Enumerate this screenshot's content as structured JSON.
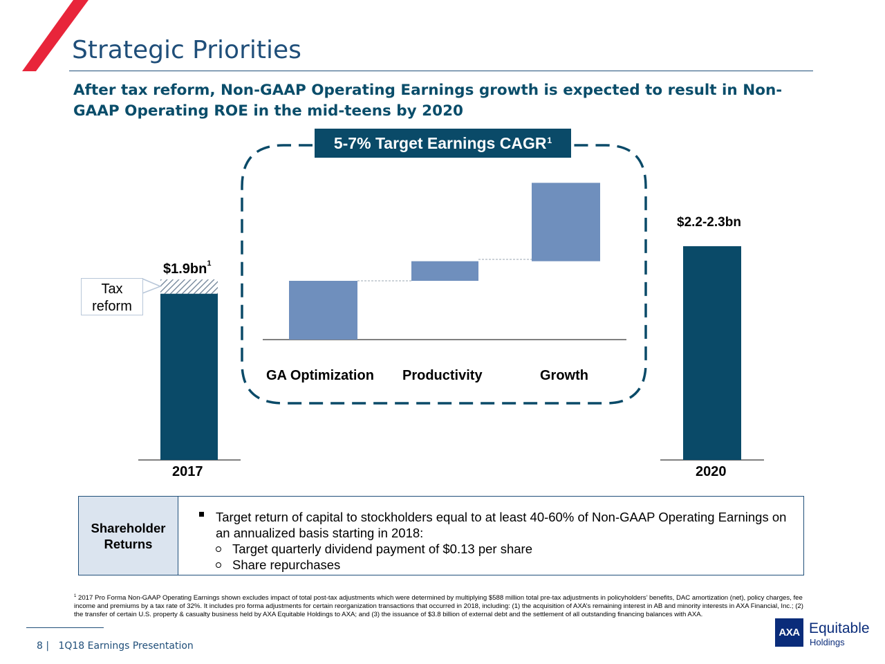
{
  "slide": {
    "title": "Strategic Priorities",
    "subtitle": "After tax reform, Non-GAAP Operating Earnings growth is expected to result in Non-GAAP Operating ROE in the mid-teens by 2020"
  },
  "colors": {
    "title_blue": "#1f4e79",
    "dark_bar": "#0a4a68",
    "light_bar": "#6f8fbd",
    "accent_red": "#e8253a",
    "table_fill": "#dbe4ef"
  },
  "cagr_callout": {
    "text": "5-7% Target Earnings CAGR",
    "footnote_mark": "1"
  },
  "tax_reform_box": {
    "line1": "Tax",
    "line2": "reform"
  },
  "chart_data": {
    "type": "bar",
    "subtype": "waterfall",
    "categories": [
      "2017",
      "GA Optimization",
      "Productivity",
      "Growth",
      "2020"
    ],
    "bar_labels": {
      "2017": {
        "text": "$1.9bn",
        "footnote_mark": "1"
      },
      "2020": {
        "text": "$2.2-2.3bn"
      }
    },
    "values": {
      "2017_total": 1.9,
      "2017_tax_reform_portion": 0.15,
      "ga_optimization": 0.09,
      "productivity": 0.03,
      "growth": 0.12,
      "2020": 2.25
    },
    "axis_labels_shown": false,
    "grid": false,
    "legend": "none"
  },
  "shareholder_returns": {
    "label_line1": "Shareholder",
    "label_line2": "Returns",
    "bullet_line1": "Target return of capital to stockholders equal to at least 40-60% of Non-GAAP Operating Earnings on",
    "bullet_line2": "an annualized basis starting in 2018:",
    "sub_items": [
      "Target quarterly dividend payment of $0.13 per share",
      "Share repurchases"
    ]
  },
  "footnote": {
    "mark": "1",
    "text": "2017 Pro Forma Non-GAAP Operating Earnings shown excludes impact of total post-tax adjustments which were determined by multiplying $588 million total pre-tax adjustments in policyholders’ benefits, DAC amortization (net), policy charges, fee income and premiums by a tax rate of 32%.  It includes pro forma adjustments for certain reorganization transactions that occurred in 2018, including: (1) the acquisition of AXA’s remaining interest in AB and minority interests in AXA Financial, Inc.; (2) the transfer of certain U.S. property & casualty business held by AXA Equitable Holdings to AXA; and (3) the issuance of $3.8 billion of external debt and the settlement of all outstanding financing balances with AXA."
  },
  "footer": {
    "page_number": "8",
    "separator": "|",
    "presentation": "1Q18 Earnings Presentation"
  },
  "logo": {
    "mark": "AXA",
    "name": "Equitable",
    "sub": "Holdings"
  }
}
